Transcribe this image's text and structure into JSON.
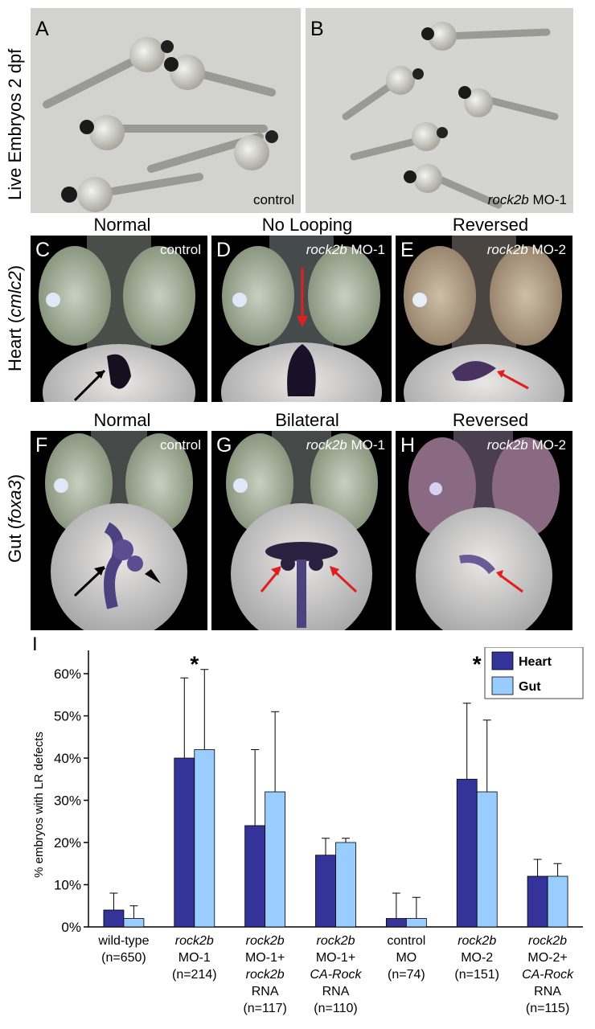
{
  "figure": {
    "row_label_live": "Live Embryos 2 dpf",
    "row_label_heart_pre": "Heart (",
    "row_label_heart_gene": "cmlc2",
    "row_label_heart_post": ")",
    "row_label_gut_pre": "Gut (",
    "row_label_gut_gene": "foxa3",
    "row_label_gut_post": ")",
    "panels": {
      "A": {
        "letter": "A",
        "tag": "control"
      },
      "B": {
        "letter": "B",
        "tag_gene": "rock2b",
        "tag_rest": " MO-1"
      },
      "C": {
        "letter": "C",
        "title": "Normal",
        "tag": "control"
      },
      "D": {
        "letter": "D",
        "title": "No Looping",
        "tag_gene": "rock2b",
        "tag_rest": " MO-1"
      },
      "E": {
        "letter": "E",
        "title": "Reversed",
        "tag_gene": "rock2b",
        "tag_rest": " MO-2"
      },
      "F": {
        "letter": "F",
        "title": "Normal",
        "tag": "control"
      },
      "G": {
        "letter": "G",
        "title": "Bilateral",
        "tag_gene": "rock2b",
        "tag_rest": " MO-1"
      },
      "H": {
        "letter": "H",
        "title": "Reversed",
        "tag_gene": "rock2b",
        "tag_rest": " MO-2"
      },
      "I": {
        "letter": "I"
      }
    }
  },
  "chart_data": {
    "type": "bar",
    "ylabel": "% embryos with LR defects",
    "ylim": [
      0,
      60
    ],
    "yticks": [
      "0%",
      "10%",
      "20%",
      "30%",
      "40%",
      "50%",
      "60%"
    ],
    "ytick_values": [
      0,
      10,
      20,
      30,
      40,
      50,
      60
    ],
    "categories": [
      [
        "wild-type",
        "(n=650)"
      ],
      [
        "rock2b",
        "MO-1",
        "(n=214)"
      ],
      [
        "rock2b",
        "MO-1+",
        "rock2b",
        "RNA",
        "(n=117)"
      ],
      [
        "rock2b",
        "MO-1+",
        "CA-Rock",
        "RNA",
        "(n=110)"
      ],
      [
        "control",
        "MO",
        "(n=74)"
      ],
      [
        "rock2b",
        "MO-2",
        "(n=151)"
      ],
      [
        "rock2b",
        "MO-2+",
        "CA-Rock",
        "RNA",
        "(n=115)"
      ]
    ],
    "italic_lines": [
      [],
      [
        0
      ],
      [
        0,
        2
      ],
      [
        0,
        2
      ],
      [],
      [
        0
      ],
      [
        0,
        2
      ]
    ],
    "series": [
      {
        "name": "Heart",
        "color": "#333399",
        "values": [
          4,
          40,
          24,
          17,
          2,
          35,
          12
        ],
        "error_upper": [
          8,
          59,
          42,
          21,
          8,
          53,
          16
        ]
      },
      {
        "name": "Gut",
        "color": "#99ccff",
        "values": [
          2,
          42,
          32,
          20,
          2,
          32,
          12
        ],
        "error_upper": [
          5,
          61,
          51,
          21,
          7,
          49,
          15
        ]
      }
    ],
    "significance": [
      1,
      5
    ],
    "significance_mark": "*",
    "legend_position": "top-right"
  }
}
